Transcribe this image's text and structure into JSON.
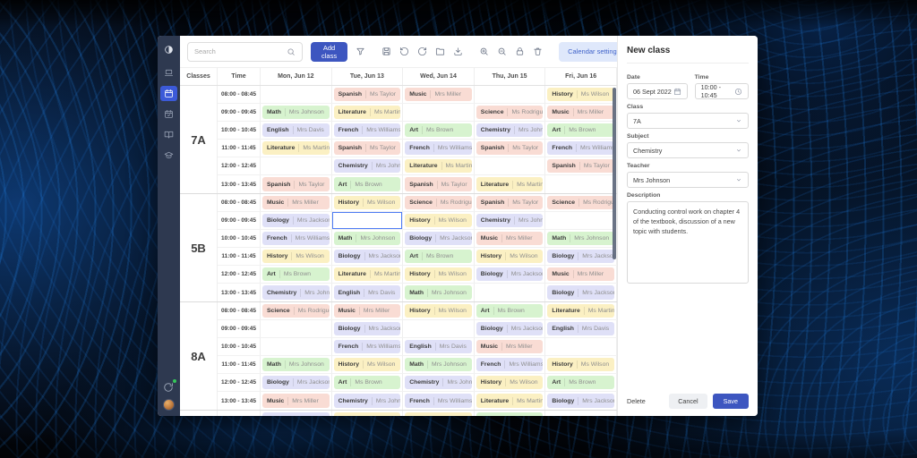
{
  "colors": {
    "accent": "#3d56c0",
    "sidebar_bg": "#2e3950",
    "active_item": "#3c5ad8",
    "selected_cell_border": "#4d7bf3",
    "subject_colors": {
      "Spanish": "#f9dcd4",
      "Music": "#f9dcd4",
      "Science": "#f9dcd4",
      "Math": "#d7f3cf",
      "Art": "#d7f3cf",
      "English": "#dfe0f7",
      "French": "#dfe0f7",
      "Chemistry": "#dfe0f7",
      "Biology": "#dfe0f7",
      "Literature": "#fbf0c3",
      "History": "#fbf0c3"
    }
  },
  "window": {
    "sidebar": {
      "items": [
        {
          "icon": "logo"
        },
        {
          "icon": "laptop"
        },
        {
          "icon": "calendar",
          "active": true
        },
        {
          "icon": "calendar-check"
        },
        {
          "icon": "book"
        },
        {
          "icon": "graduation-cap"
        }
      ],
      "bottom_icons": [
        "sync",
        "avatar"
      ]
    },
    "toolbar": {
      "search": {
        "placeholder": "Search",
        "icon": "search"
      },
      "add_class_label": "Add class",
      "filter_icon": "filter",
      "file_icons": [
        "save",
        "undo",
        "redo",
        "folder",
        "download"
      ],
      "view_icons": [
        "zoom-in",
        "zoom-out",
        "lock",
        "trash"
      ],
      "calendar_settings_label": "Calendar settings"
    },
    "table": {
      "headers": [
        "Classes",
        "Time",
        "Mon, Jun 12",
        "Tue, Jun 13",
        "Wed, Jun 14",
        "Thu, Jun 15",
        "Fri, Jun 16"
      ],
      "times": [
        "08:00 - 08:45",
        "09:00 - 09:45",
        "10:00 - 10:45",
        "11:00 - 11:45",
        "12:00 - 12:45",
        "13:00 - 13:45"
      ],
      "sections": [
        {
          "label": "7A",
          "rows": [
            [
              null,
              [
                "Spanish",
                "Ms Taylor"
              ],
              [
                "Music",
                "Mrs Miller"
              ],
              null,
              [
                "History",
                "Ms Wilson"
              ]
            ],
            [
              [
                "Math",
                "Mrs Johnson"
              ],
              [
                "Literature",
                "Ms Martin"
              ],
              null,
              [
                "Science",
                "Ms Rodriguez"
              ],
              [
                "Music",
                "Mrs Miller"
              ]
            ],
            [
              [
                "English",
                "Mrs Davis"
              ],
              [
                "French",
                "Mrs Williams"
              ],
              [
                "Art",
                "Ms Brown"
              ],
              [
                "Chemistry",
                "Mrs Johnson"
              ],
              [
                "Art",
                "Ms Brown"
              ]
            ],
            [
              [
                "Literature",
                "Ms Martin"
              ],
              [
                "Spanish",
                "Ms Taylor"
              ],
              [
                "French",
                "Mrs Williams"
              ],
              [
                "Spanish",
                "Ms Taylor"
              ],
              [
                "French",
                "Mrs Williams"
              ]
            ],
            [
              null,
              [
                "Chemistry",
                "Mrs Johnson"
              ],
              [
                "Literature",
                "Ms Martin"
              ],
              null,
              [
                "Spanish",
                "Ms Taylor"
              ]
            ],
            [
              [
                "Spanish",
                "Ms Taylor"
              ],
              [
                "Art",
                "Ms Brown"
              ],
              [
                "Spanish",
                "Ms Taylor"
              ],
              [
                "Literature",
                "Ms Martin"
              ],
              null
            ]
          ]
        },
        {
          "label": "5B",
          "selected": {
            "row": 1,
            "col": 1
          },
          "rows": [
            [
              [
                "Music",
                "Mrs Miller"
              ],
              [
                "History",
                "Ms Wilson"
              ],
              [
                "Science",
                "Ms Rodriguez"
              ],
              [
                "Spanish",
                "Ms Taylor"
              ],
              [
                "Science",
                "Ms Rodriguez"
              ]
            ],
            [
              [
                "Biology",
                "Mrs Jackson"
              ],
              null,
              [
                "History",
                "Ms Wilson"
              ],
              [
                "Chemistry",
                "Mrs Johnson"
              ],
              null
            ],
            [
              [
                "French",
                "Mrs Williams"
              ],
              [
                "Math",
                "Mrs Johnson"
              ],
              [
                "Biology",
                "Mrs Jackson"
              ],
              [
                "Music",
                "Mrs Miller"
              ],
              [
                "Math",
                "Mrs Johnson"
              ]
            ],
            [
              [
                "History",
                "Ms Wilson"
              ],
              [
                "Biology",
                "Mrs Jackson"
              ],
              [
                "Art",
                "Ms Brown"
              ],
              [
                "History",
                "Ms Wilson"
              ],
              [
                "Biology",
                "Mrs Jackson"
              ]
            ],
            [
              [
                "Art",
                "Ms Brown"
              ],
              [
                "Literature",
                "Ms Martin"
              ],
              [
                "History",
                "Ms Wilson"
              ],
              [
                "Biology",
                "Mrs Jackson"
              ],
              [
                "Music",
                "Mrs Miller"
              ]
            ],
            [
              [
                "Chemistry",
                "Mrs Johnson"
              ],
              [
                "English",
                "Mrs Davis"
              ],
              [
                "Math",
                "Mrs Johnson"
              ],
              null,
              [
                "Biology",
                "Mrs Jackson"
              ]
            ]
          ]
        },
        {
          "label": "8A",
          "rows": [
            [
              [
                "Science",
                "Ms Rodriguez"
              ],
              [
                "Music",
                "Mrs Miller"
              ],
              [
                "History",
                "Ms Wilson"
              ],
              [
                "Art",
                "Ms Brown"
              ],
              [
                "Literature",
                "Ms Martin"
              ]
            ],
            [
              null,
              [
                "Biology",
                "Mrs Jackson"
              ],
              null,
              [
                "Biology",
                "Mrs Jackson"
              ],
              [
                "English",
                "Mrs Davis"
              ]
            ],
            [
              null,
              [
                "French",
                "Mrs Williams"
              ],
              [
                "English",
                "Mrs Davis"
              ],
              [
                "Music",
                "Mrs Miller"
              ],
              null
            ],
            [
              [
                "Math",
                "Mrs Johnson"
              ],
              [
                "History",
                "Ms Wilson"
              ],
              [
                "Math",
                "Mrs Johnson"
              ],
              [
                "French",
                "Mrs Williams"
              ],
              [
                "History",
                "Ms Wilson"
              ]
            ],
            [
              [
                "Biology",
                "Mrs Jackson"
              ],
              [
                "Art",
                "Ms Brown"
              ],
              [
                "Chemistry",
                "Mrs Johnson"
              ],
              [
                "History",
                "Ms Wilson"
              ],
              [
                "Art",
                "Ms Brown"
              ]
            ],
            [
              [
                "Music",
                "Mrs Miller"
              ],
              [
                "Chemistry",
                "Mrs Johnson"
              ],
              [
                "French",
                "Mrs Williams"
              ],
              [
                "Literature",
                "Ms Martin"
              ],
              [
                "Biology",
                "Mrs Jackson"
              ]
            ]
          ]
        },
        {
          "label": "",
          "partial": true,
          "rows": [
            [
              [
                "French",
                "Mrs Williams"
              ],
              [
                "History",
                "Ms Wilson"
              ],
              [
                "Literature",
                "Ms Martin"
              ],
              [
                "Art",
                "Ms Brown"
              ],
              null
            ]
          ]
        }
      ]
    },
    "panel": {
      "title": "New class",
      "date_label": "Date",
      "date_value": "06 Sept 2022",
      "time_label": "Time",
      "time_value": "10:00 - 10:45",
      "class_label": "Class",
      "class_value": "7A",
      "subject_label": "Subject",
      "subject_value": "Chemistry",
      "teacher_label": "Teacher",
      "teacher_value": "Mrs Johnson",
      "description_label": "Description",
      "description_value": "Conducting control work on chapter 4 of the textbook, discussion of a new topic with students.",
      "delete_label": "Delete",
      "cancel_label": "Cancel",
      "save_label": "Save"
    }
  }
}
